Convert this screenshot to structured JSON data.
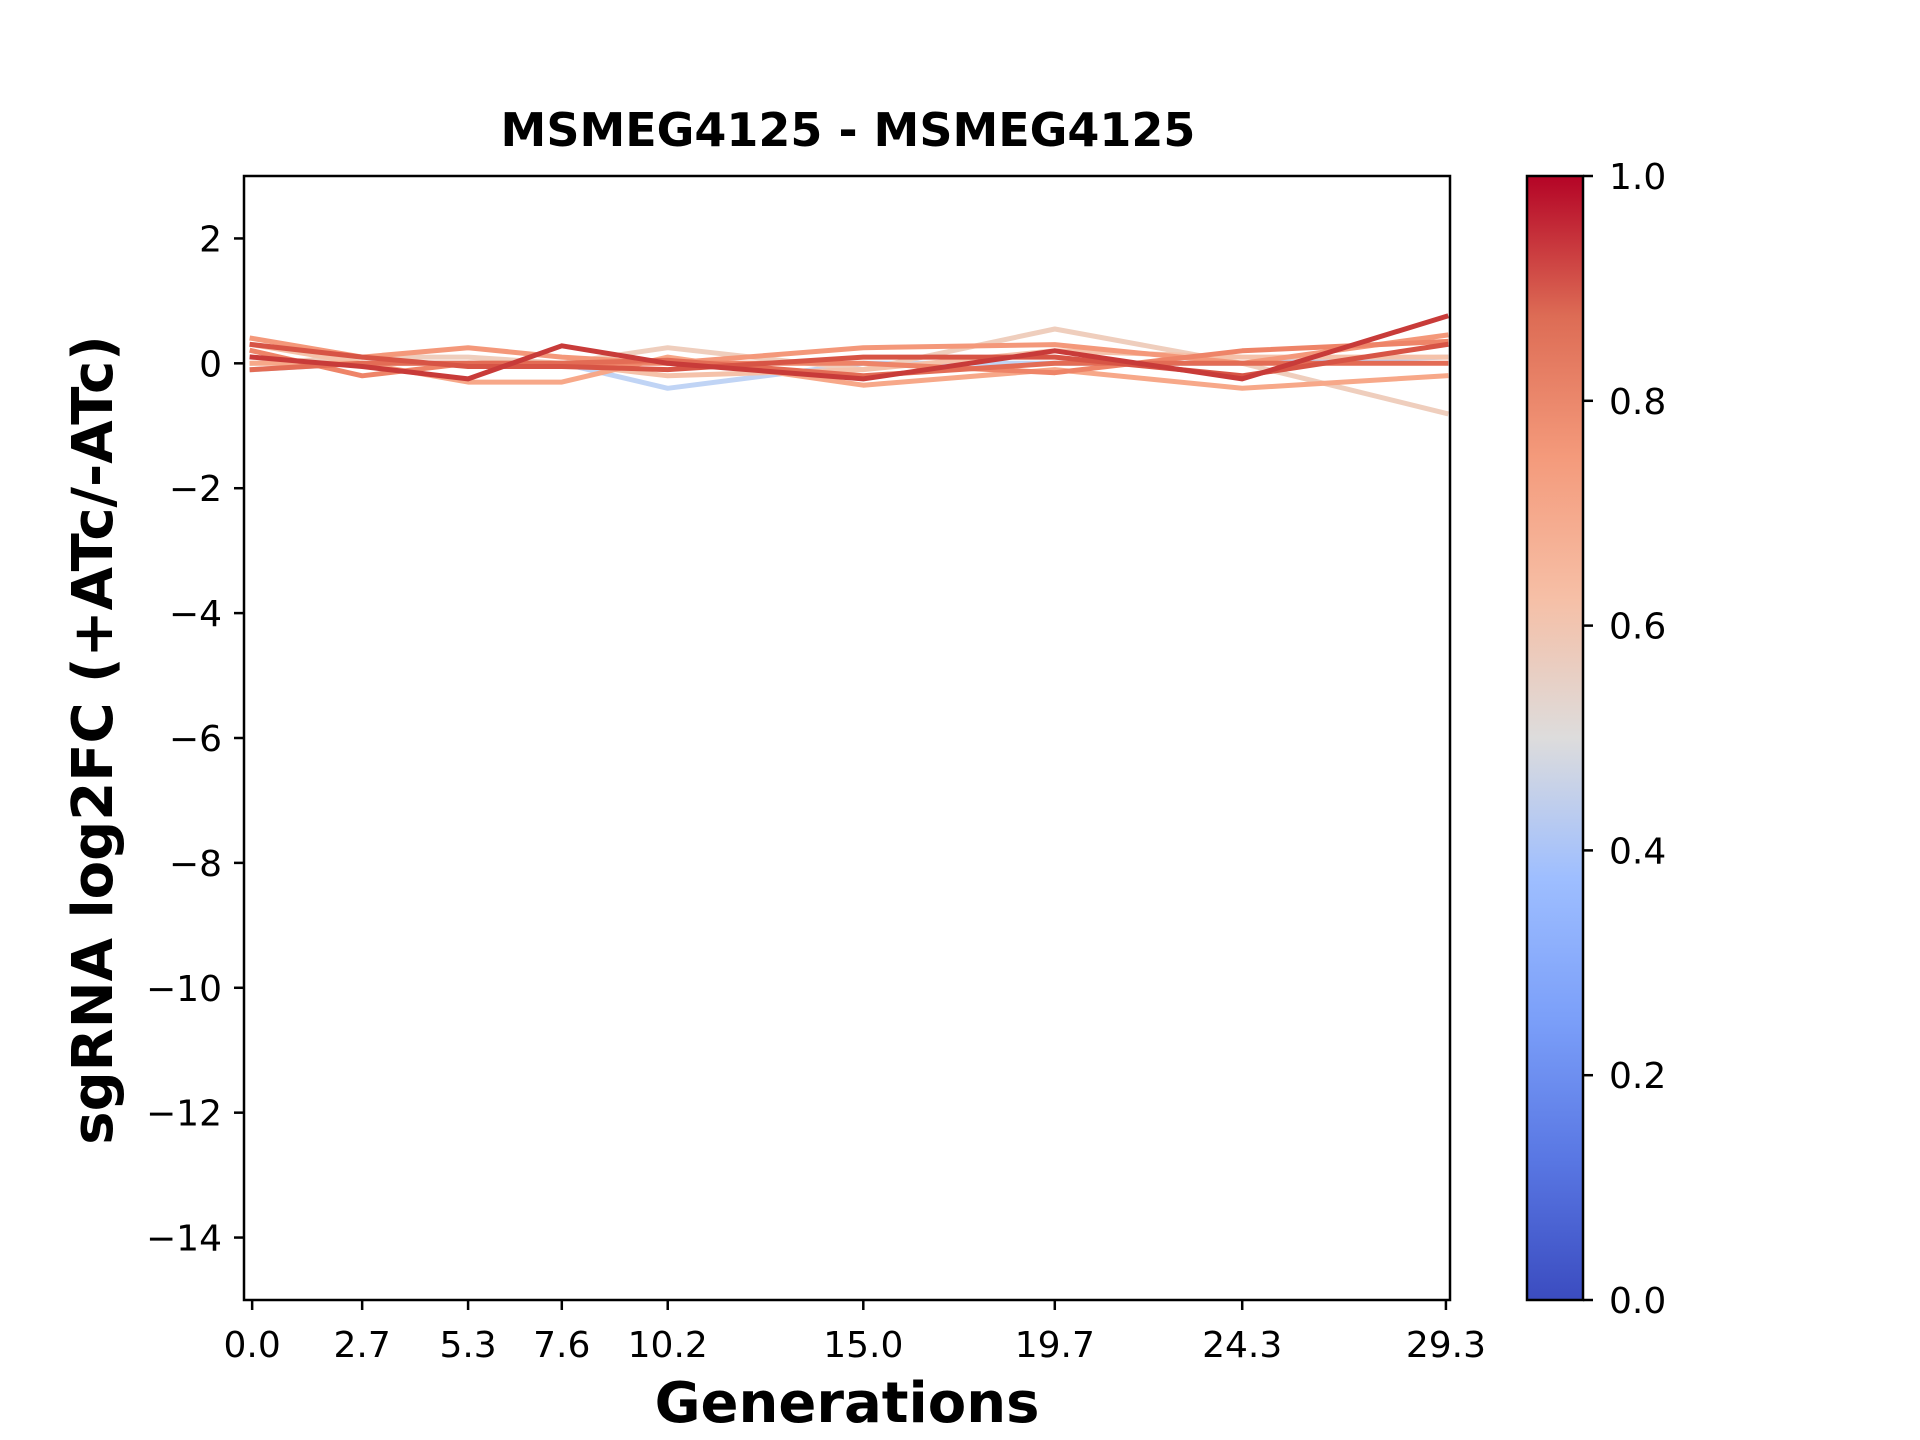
{
  "chart_data": {
    "type": "line",
    "title": "MSMEG4125 - MSMEG4125",
    "xlabel": "Generations",
    "ylabel": "sgRNA log2FC (+ATc/-ATc)",
    "x": [
      0.0,
      2.7,
      5.3,
      7.6,
      10.2,
      15.0,
      19.7,
      24.3,
      29.3
    ],
    "x_tick_labels": [
      "0.0",
      "2.7",
      "5.3",
      "7.6",
      "10.2",
      "15.0",
      "19.7",
      "24.3",
      "29.3"
    ],
    "xlim": [
      -0.2,
      29.4
    ],
    "ylim": [
      -15,
      3
    ],
    "y_ticks": [
      2,
      0,
      -2,
      -4,
      -6,
      -8,
      -10,
      -12,
      -14
    ],
    "y_tick_labels": [
      "2",
      "0",
      "−2",
      "−4",
      "−6",
      "−8",
      "−10",
      "−12",
      "−14"
    ],
    "colorbar": {
      "colormap": "coolwarm",
      "range": [
        0.0,
        1.0
      ],
      "tick_labels": [
        "1.0",
        "0.8",
        "0.6",
        "0.4",
        "0.2",
        "0.0"
      ],
      "tick_values": [
        1.0,
        0.8,
        0.6,
        0.4,
        0.2,
        0.0
      ]
    },
    "series": [
      {
        "color_value": 0.38,
        "color": "#c0d4f5",
        "values": [
          -0.1,
          0.0,
          0.0,
          0.0,
          -0.4,
          0.0,
          0.0,
          0.0,
          0.1
        ]
      },
      {
        "color_value": 0.58,
        "color": "#efcebd",
        "values": [
          0.0,
          0.1,
          0.1,
          0.0,
          0.25,
          -0.1,
          0.55,
          0.0,
          -0.8
        ]
      },
      {
        "color_value": 0.66,
        "color": "#f5c2aa",
        "values": [
          0.3,
          0.0,
          0.0,
          0.0,
          -0.2,
          -0.1,
          0.2,
          0.1,
          0.1
        ]
      },
      {
        "color_value": 0.72,
        "color": "#f7a889",
        "values": [
          0.0,
          0.0,
          -0.3,
          -0.3,
          0.1,
          -0.35,
          -0.1,
          -0.4,
          -0.2
        ]
      },
      {
        "color_value": 0.76,
        "color": "#f4987a",
        "values": [
          0.4,
          0.1,
          0.25,
          0.1,
          0.0,
          0.25,
          0.3,
          0.0,
          0.45
        ]
      },
      {
        "color_value": 0.8,
        "color": "#ee8468",
        "values": [
          0.2,
          -0.2,
          0.0,
          0.0,
          0.0,
          0.0,
          -0.15,
          0.2,
          0.35
        ]
      },
      {
        "color_value": 0.86,
        "color": "#e36c55",
        "values": [
          -0.1,
          0.0,
          0.0,
          0.0,
          0.05,
          -0.2,
          0.0,
          0.0,
          0.0
        ]
      },
      {
        "color_value": 0.9,
        "color": "#d75445",
        "values": [
          0.3,
          0.1,
          -0.05,
          -0.05,
          -0.1,
          0.1,
          0.1,
          -0.2,
          0.3
        ]
      },
      {
        "color_value": 0.94,
        "color": "#c83b39",
        "values": [
          0.1,
          -0.05,
          -0.25,
          0.28,
          0.0,
          -0.25,
          0.2,
          -0.25,
          0.75
        ]
      }
    ]
  }
}
